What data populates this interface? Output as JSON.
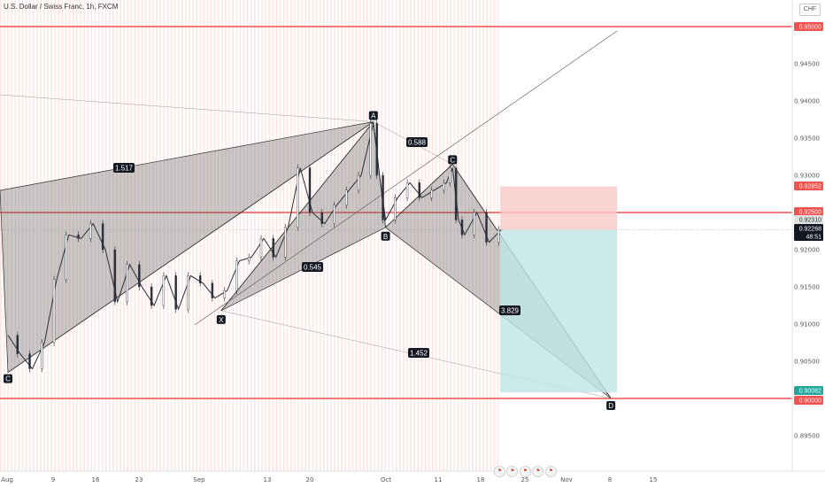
{
  "header": {
    "title": "U.S. Dollar / Swiss Franc, 1h, FXCM",
    "currency": "CHF"
  },
  "events": {
    "icons": [
      "flag-icon",
      "flag-icon",
      "flag-icon",
      "flag-icon",
      "flag-icon"
    ]
  },
  "chart_data": {
    "type": "line",
    "description_type": "candlestick-price-chart-with-harmonic-pattern",
    "symbol": "USD/CHF",
    "timeframe": "1h",
    "x": {
      "ticks": [
        "Aug",
        "9",
        "16",
        "23",
        "Sep",
        "13",
        "20",
        "Oct",
        "11",
        "18",
        "25",
        "Nov",
        "8",
        "15"
      ]
    },
    "y": {
      "ticks": [
        "0.95000",
        "0.94500",
        "0.94000",
        "0.93500",
        "0.93000",
        "0.92500",
        "0.92000",
        "0.91500",
        "0.91000",
        "0.90500",
        "0.90000",
        "0.89500"
      ],
      "ylim": [
        0.8935,
        0.955
      ]
    },
    "horizontal_levels": [
      0.95,
      0.925,
      0.9
    ],
    "level_color": "#ef5350",
    "pattern_points": [
      {
        "label": "C",
        "date": "Aug 1",
        "price": 0.9035
      },
      {
        "label": "X",
        "date": "Sep 5",
        "price": 0.9118
      },
      {
        "label": "A",
        "date": "Sep 30",
        "price": 0.9372
      },
      {
        "label": "B",
        "date": "Oct 2",
        "price": 0.923
      },
      {
        "label": "C",
        "date": "Oct 13",
        "price": 0.9315
      },
      {
        "label": "D",
        "date": "Nov 8",
        "price": 0.9
      }
    ],
    "ratios": [
      {
        "label": "1.517"
      },
      {
        "label": "0.588"
      },
      {
        "label": "0.545"
      },
      {
        "label": "3.829"
      },
      {
        "label": "1.452"
      }
    ],
    "position": {
      "stop": 0.92852,
      "entry": 0.92268,
      "target": 0.90082,
      "stop_color": "#f7c7c7",
      "target_color": "#bde6e1"
    },
    "price_badges": [
      {
        "label": "0.95000",
        "bg": "#ef5350",
        "fg": "#ffffff"
      },
      {
        "label": "0.92852",
        "bg": "#ef5350",
        "fg": "#ffffff"
      },
      {
        "label": "0.92500",
        "bg": "#ef5350",
        "fg": "#ffffff"
      },
      {
        "label": "0.92310",
        "bg": "#e0e0e0",
        "fg": "#333333"
      },
      {
        "label": "0.92268",
        "bg": "#131722",
        "fg": "#ffffff"
      },
      {
        "label": "48:51",
        "bg": "#131722",
        "fg": "#ffffff"
      },
      {
        "label": "0.90082",
        "bg": "#26a69a",
        "fg": "#ffffff"
      },
      {
        "label": "0.90000",
        "bg": "#ef5350",
        "fg": "#ffffff"
      }
    ],
    "candles": [
      {
        "date": "Aug 1",
        "price": 0.9085
      },
      {
        "date": "Aug 3",
        "price": 0.906
      },
      {
        "date": "Aug 5",
        "price": 0.904
      },
      {
        "date": "Aug 7",
        "price": 0.9075
      },
      {
        "date": "Aug 9",
        "price": 0.916
      },
      {
        "date": "Aug 11",
        "price": 0.922
      },
      {
        "date": "Aug 13",
        "price": 0.9215
      },
      {
        "date": "Aug 15",
        "price": 0.9235
      },
      {
        "date": "Aug 17",
        "price": 0.92
      },
      {
        "date": "Aug 19",
        "price": 0.913
      },
      {
        "date": "Aug 21",
        "price": 0.918
      },
      {
        "date": "Aug 23",
        "price": 0.915
      },
      {
        "date": "Aug 25",
        "price": 0.9125
      },
      {
        "date": "Aug 27",
        "price": 0.9165
      },
      {
        "date": "Aug 29",
        "price": 0.912
      },
      {
        "date": "Aug 31",
        "price": 0.9165
      },
      {
        "date": "Sep 2",
        "price": 0.9155
      },
      {
        "date": "Sep 4",
        "price": 0.9135
      },
      {
        "date": "Sep 6",
        "price": 0.9145
      },
      {
        "date": "Sep 8",
        "price": 0.9185
      },
      {
        "date": "Sep 10",
        "price": 0.919
      },
      {
        "date": "Sep 12",
        "price": 0.9215
      },
      {
        "date": "Sep 14",
        "price": 0.919
      },
      {
        "date": "Sep 16",
        "price": 0.923
      },
      {
        "date": "Sep 18",
        "price": 0.931
      },
      {
        "date": "Sep 20",
        "price": 0.925
      },
      {
        "date": "Sep 22",
        "price": 0.9235
      },
      {
        "date": "Sep 24",
        "price": 0.926
      },
      {
        "date": "Sep 26",
        "price": 0.928
      },
      {
        "date": "Sep 28",
        "price": 0.93
      },
      {
        "date": "Sep 30",
        "price": 0.937
      },
      {
        "date": "Oct 1",
        "price": 0.93
      },
      {
        "date": "Oct 2",
        "price": 0.924
      },
      {
        "date": "Oct 4",
        "price": 0.927
      },
      {
        "date": "Oct 6",
        "price": 0.929
      },
      {
        "date": "Oct 8",
        "price": 0.927
      },
      {
        "date": "Oct 10",
        "price": 0.928
      },
      {
        "date": "Oct 12",
        "price": 0.929
      },
      {
        "date": "Oct 13",
        "price": 0.931
      },
      {
        "date": "Oct 14",
        "price": 0.924
      },
      {
        "date": "Oct 15",
        "price": 0.922
      },
      {
        "date": "Oct 17",
        "price": 0.925
      },
      {
        "date": "Oct 19",
        "price": 0.921
      },
      {
        "date": "Oct 21",
        "price": 0.9227
      }
    ]
  }
}
